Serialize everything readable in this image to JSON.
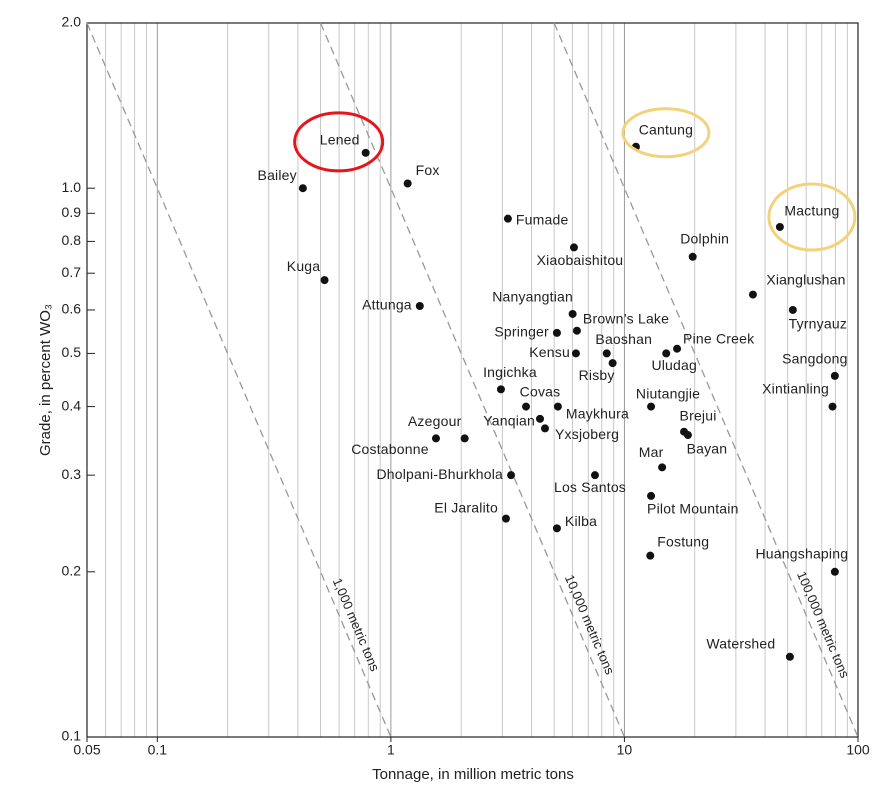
{
  "chart_data": {
    "type": "scatter",
    "xlabel": "Tonnage, in million metric tons",
    "ylabel": "Grade, in percent WO₃",
    "log_x": true,
    "log_y": true,
    "xlim": [
      0.05,
      100
    ],
    "ylim": [
      0.1,
      2
    ],
    "xticks": [
      0.05,
      0.1,
      1,
      10,
      100
    ],
    "x_minor_ticks": [
      0.06,
      0.07,
      0.08,
      0.09,
      0.2,
      0.3,
      0.4,
      0.5,
      0.6,
      0.7,
      0.8,
      0.9,
      2,
      3,
      4,
      5,
      6,
      7,
      8,
      9,
      20,
      30,
      40,
      50,
      60,
      70,
      80,
      90
    ],
    "yticks": [
      0.1,
      0.2,
      0.3,
      0.4,
      0.5,
      0.6,
      0.7,
      0.8,
      0.9,
      {
        "value": 1,
        "label": "1.0"
      },
      {
        "value": 2,
        "label": "2.0"
      }
    ],
    "grid": true,
    "color": "#111111",
    "reference_lines": [
      {
        "label": "1,000 metric tons",
        "product": 0.1
      },
      {
        "label": "10,000 metric tons",
        "product": 1
      },
      {
        "label": "100,000 metric tons",
        "product": 10
      }
    ],
    "labels": [
      "Lened",
      "Bailey",
      "Fox",
      "Cantung",
      "Mactung",
      "Fumade",
      "Xiaobaishitou",
      "Dolphin",
      "Kuga",
      "Attunga",
      "Xianglushan",
      "Tyrnyauz",
      "Nanyangtian",
      "Springer",
      "Brown’s Lake",
      "Pine Creek",
      "Kensu",
      "Baoshan",
      "Uludag",
      "Risby",
      "Ingichka",
      "Sangdong",
      "Xintianling",
      "Covas",
      "Maykhura",
      "Niutangjie",
      "Yanqian",
      "Yxsjoberg",
      "Brejui",
      "Bayan",
      "Azegour",
      "Costabonne",
      "Mar",
      "Dholpani-Bhurkhola",
      "Los Santos",
      "Pilot Mountain",
      "El Jaralito",
      "Kilba",
      "Fostung",
      "Huangshaping",
      "Watershed"
    ],
    "x": [
      0.78,
      0.42,
      1.18,
      11.2,
      46.3,
      3.17,
      6.08,
      19.6,
      0.52,
      1.33,
      35.5,
      52.6,
      6.0,
      5.14,
      6.26,
      16.8,
      6.2,
      8.4,
      15.1,
      8.9,
      2.96,
      79.6,
      77.8,
      3.79,
      5.19,
      13.0,
      4.35,
      4.57,
      18.0,
      18.7,
      2.07,
      1.56,
      14.5,
      3.27,
      7.48,
      13.0,
      3.11,
      5.14,
      12.9,
      79.6,
      51.1
    ],
    "values": [
      1.16,
      1.0,
      1.02,
      1.19,
      0.85,
      0.88,
      0.78,
      0.75,
      0.68,
      0.61,
      0.64,
      0.6,
      0.59,
      0.545,
      0.55,
      0.51,
      0.5,
      0.5,
      0.5,
      0.48,
      0.43,
      0.455,
      0.4,
      0.4,
      0.4,
      0.4,
      0.38,
      0.365,
      0.36,
      0.355,
      0.35,
      0.35,
      0.31,
      0.3,
      0.3,
      0.275,
      0.25,
      0.24,
      0.214,
      0.2,
      0.14
    ],
    "highlight_colors": [
      "#e8141c",
      null,
      null,
      "#f2d27a",
      "#f2d27a",
      null,
      null,
      null,
      null,
      null,
      null,
      null,
      null,
      null,
      null,
      null,
      null,
      null,
      null,
      null,
      null,
      null,
      null,
      null,
      null,
      null,
      null,
      null,
      null,
      null,
      null,
      null,
      null,
      null,
      null,
      null,
      null,
      null,
      null,
      null,
      null
    ]
  }
}
